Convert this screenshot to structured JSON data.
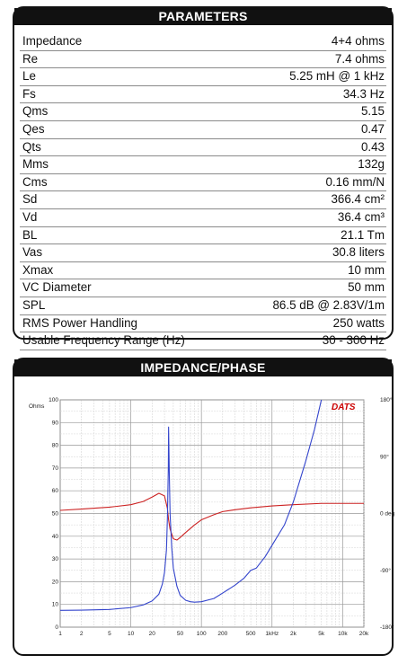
{
  "parameters": {
    "title": "PARAMETERS",
    "rows": [
      {
        "name": "Impedance",
        "value": "4+4 ohms"
      },
      {
        "name": "Re",
        "value": "7.4 ohms"
      },
      {
        "name": "Le",
        "value": "5.25 mH @ 1 kHz"
      },
      {
        "name": "Fs",
        "value": "34.3 Hz"
      },
      {
        "name": "Qms",
        "value": "5.15"
      },
      {
        "name": "Qes",
        "value": "0.47"
      },
      {
        "name": "Qts",
        "value": "0.43"
      },
      {
        "name": "Mms",
        "value": "132g"
      },
      {
        "name": "Cms",
        "value": "0.16 mm/N"
      },
      {
        "name": "Sd",
        "value": "366.4 cm²"
      },
      {
        "name": "Vd",
        "value": "36.4 cm³"
      },
      {
        "name": "BL",
        "value": "21.1 Tm"
      },
      {
        "name": "Vas",
        "value": "30.8 liters"
      },
      {
        "name": "Xmax",
        "value": "10 mm"
      },
      {
        "name": "VC Diameter",
        "value": "50 mm"
      },
      {
        "name": "SPL",
        "value": "86.5 dB @ 2.83V/1m"
      },
      {
        "name": "RMS Power Handling",
        "value": "250 watts"
      },
      {
        "name": "Usable Frequency Range (Hz)",
        "value": "30 - 300 Hz"
      }
    ]
  },
  "impedance_phase": {
    "title": "IMPEDANCE/PHASE",
    "brand": "DATS",
    "left_unit": "Ohms",
    "right_unit": "deg"
  },
  "chart_data": {
    "type": "line",
    "title": "",
    "xscale": "log",
    "xlim": [
      1,
      20000
    ],
    "ylim": [
      0,
      100
    ],
    "y2lim": [
      -180,
      180
    ],
    "grid": true,
    "x_ticks": [
      "1",
      "2",
      "5",
      "10",
      "20",
      "50",
      "100",
      "200",
      "500",
      "1kHz",
      "2k",
      "5k",
      "10k",
      "20k"
    ],
    "y_ticks": [
      "0",
      "10",
      "20",
      "30",
      "40",
      "50",
      "60",
      "70",
      "80",
      "90",
      "100"
    ],
    "y2_ticks": [
      "180°",
      "90°",
      "0 deg",
      "-90°",
      "-180°"
    ],
    "colors": {
      "impedance": "#3344cc",
      "phase": "#cc2222",
      "brand": "#cc0000"
    },
    "series": [
      {
        "axis": "left",
        "x": [
          1,
          2,
          5,
          10,
          15,
          20,
          25,
          28,
          30,
          32,
          33,
          34,
          34.3,
          35,
          36,
          38,
          40,
          45,
          50,
          60,
          70,
          80,
          100,
          150,
          200,
          300,
          400,
          500,
          600,
          800,
          1000,
          1500,
          2000,
          3000,
          4000,
          5000
        ],
        "values": [
          7.4,
          7.5,
          7.8,
          8.6,
          9.8,
          11.5,
          14.5,
          19,
          24,
          34,
          48,
          70,
          88,
          70,
          50,
          35,
          26,
          18,
          14,
          11.8,
          11.2,
          11,
          11.2,
          12.6,
          15,
          18.5,
          21.5,
          25,
          26,
          31,
          36,
          45,
          55,
          73,
          87,
          100
        ]
      },
      {
        "axis": "right",
        "x": [
          1,
          2,
          5,
          10,
          15,
          20,
          25,
          30,
          33,
          34.3,
          36,
          40,
          45,
          50,
          60,
          80,
          100,
          150,
          200,
          300,
          500,
          1000,
          2000,
          5000,
          10000,
          20000
        ],
        "values": [
          5,
          7,
          10,
          14,
          19,
          26,
          32,
          28,
          8,
          -10,
          -25,
          -40,
          -42,
          -38,
          -30,
          -18,
          -10,
          -2,
          3,
          6,
          9,
          12,
          14,
          16,
          16,
          16
        ]
      }
    ]
  }
}
